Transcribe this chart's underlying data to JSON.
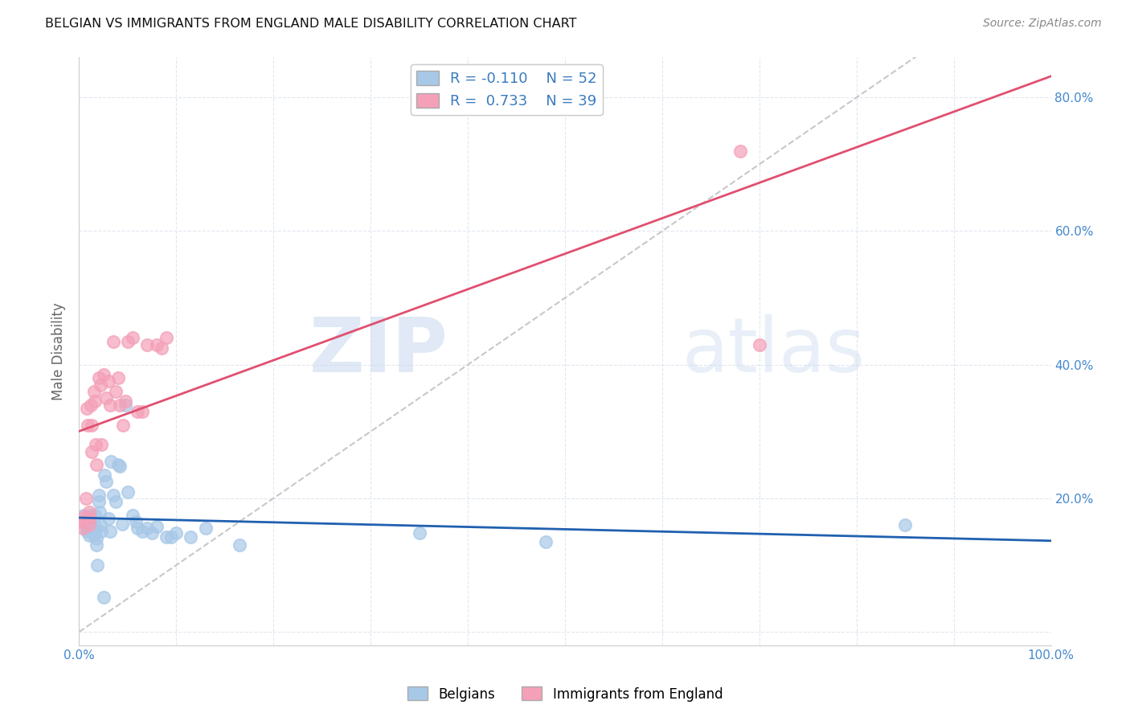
{
  "title": "BELGIAN VS IMMIGRANTS FROM ENGLAND MALE DISABILITY CORRELATION CHART",
  "source": "Source: ZipAtlas.com",
  "ylabel": "Male Disability",
  "xlim": [
    0.0,
    1.0
  ],
  "ylim": [
    -0.02,
    0.86
  ],
  "plot_ylim": [
    -0.02,
    0.86
  ],
  "x_ticks": [
    0.0,
    0.1,
    0.2,
    0.3,
    0.4,
    0.5,
    0.6,
    0.7,
    0.8,
    0.9,
    1.0
  ],
  "y_ticks": [
    0.0,
    0.2,
    0.4,
    0.6,
    0.8
  ],
  "right_y_labels": [
    "",
    "20.0%",
    "40.0%",
    "60.0%",
    "80.0%"
  ],
  "belgian_R": -0.11,
  "belgian_N": 52,
  "england_R": 0.733,
  "england_N": 39,
  "belgian_color": "#a8c8e8",
  "england_color": "#f4a0b8",
  "belgian_line_color": "#2060b0",
  "england_line_color": "#e05070",
  "diagonal_color": "#c8c8c8",
  "grid_color": "#e0e8f0",
  "watermark_zip": "ZIP",
  "watermark_atlas": "atlas",
  "belgians_x": [
    0.005,
    0.008,
    0.008,
    0.009,
    0.01,
    0.01,
    0.01,
    0.01,
    0.012,
    0.013,
    0.014,
    0.015,
    0.016,
    0.016,
    0.017,
    0.018,
    0.018,
    0.019,
    0.02,
    0.02,
    0.021,
    0.022,
    0.023,
    0.025,
    0.026,
    0.028,
    0.03,
    0.032,
    0.033,
    0.035,
    0.038,
    0.04,
    0.042,
    0.044,
    0.048,
    0.05,
    0.055,
    0.058,
    0.06,
    0.065,
    0.07,
    0.075,
    0.08,
    0.09,
    0.095,
    0.1,
    0.115,
    0.13,
    0.165,
    0.35,
    0.48,
    0.85
  ],
  "belgians_y": [
    0.175,
    0.16,
    0.15,
    0.155,
    0.17,
    0.165,
    0.155,
    0.145,
    0.175,
    0.165,
    0.155,
    0.145,
    0.175,
    0.16,
    0.15,
    0.14,
    0.13,
    0.1,
    0.205,
    0.195,
    0.18,
    0.16,
    0.15,
    0.052,
    0.235,
    0.225,
    0.17,
    0.15,
    0.255,
    0.205,
    0.195,
    0.25,
    0.248,
    0.162,
    0.34,
    0.21,
    0.175,
    0.165,
    0.155,
    0.15,
    0.155,
    0.148,
    0.158,
    0.142,
    0.142,
    0.148,
    0.142,
    0.155,
    0.13,
    0.148,
    0.135,
    0.16
  ],
  "england_x": [
    0.003,
    0.004,
    0.005,
    0.007,
    0.008,
    0.009,
    0.01,
    0.01,
    0.01,
    0.012,
    0.013,
    0.013,
    0.015,
    0.016,
    0.017,
    0.018,
    0.02,
    0.022,
    0.023,
    0.025,
    0.028,
    0.03,
    0.032,
    0.035,
    0.038,
    0.04,
    0.042,
    0.045,
    0.048,
    0.05,
    0.055,
    0.06,
    0.065,
    0.07,
    0.08,
    0.085,
    0.09,
    0.68,
    0.7
  ],
  "england_y": [
    0.165,
    0.155,
    0.172,
    0.2,
    0.335,
    0.31,
    0.18,
    0.17,
    0.16,
    0.34,
    0.31,
    0.27,
    0.36,
    0.345,
    0.28,
    0.25,
    0.38,
    0.37,
    0.28,
    0.385,
    0.35,
    0.375,
    0.34,
    0.435,
    0.36,
    0.38,
    0.34,
    0.31,
    0.345,
    0.435,
    0.44,
    0.33,
    0.33,
    0.43,
    0.43,
    0.425,
    0.44,
    0.72,
    0.43
  ],
  "belgian_line_x0": 0.0,
  "belgian_line_x1": 1.0,
  "england_line_x0": 0.0,
  "england_line_x1": 1.0
}
